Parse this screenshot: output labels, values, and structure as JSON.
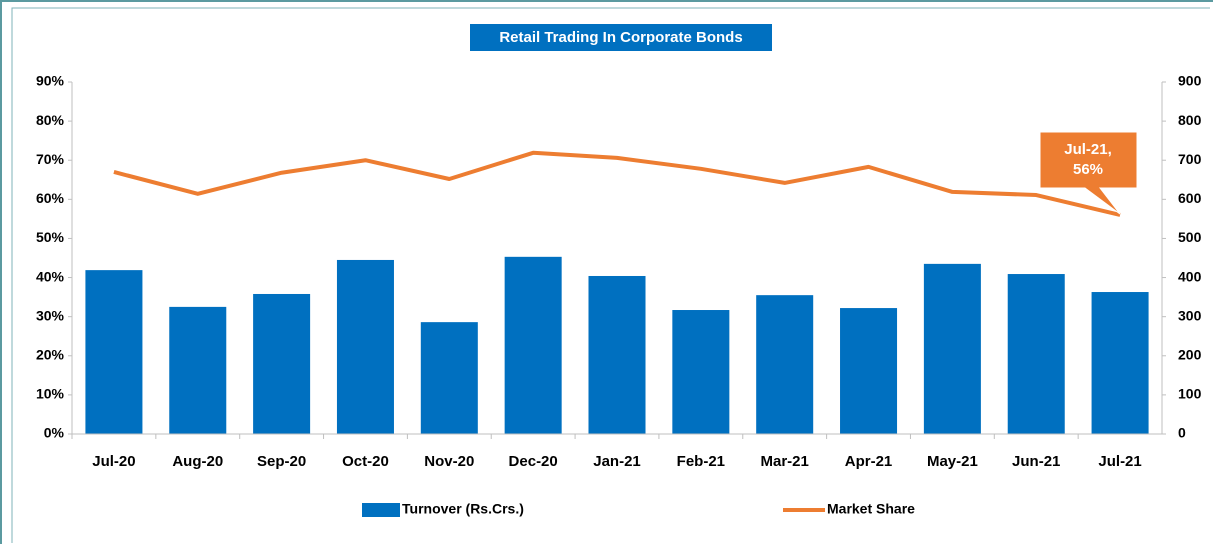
{
  "chart_data": {
    "type": "bar-line",
    "title": "Retail Trading In Corporate Bonds",
    "categories": [
      "Jul-20",
      "Aug-20",
      "Sep-20",
      "Oct-20",
      "Nov-20",
      "Dec-20",
      "Jan-21",
      "Feb-21",
      "Mar-21",
      "Apr-21",
      "May-21",
      "Jun-21",
      "Jul-21"
    ],
    "series": [
      {
        "name": "Turnover (Rs.Crs.)",
        "type": "bar",
        "axis": "y2",
        "color": "#0070c0",
        "values": [
          419,
          325,
          358,
          445,
          286,
          453,
          404,
          317,
          355,
          322,
          435,
          409,
          363
        ]
      },
      {
        "name": "Market Share",
        "type": "line",
        "axis": "y",
        "color": "#ed7d31",
        "values": [
          67,
          61.4,
          66.8,
          70,
          65.2,
          71.9,
          70.6,
          67.8,
          64.2,
          68.3,
          61.9,
          61.1,
          56
        ]
      }
    ],
    "ylim": [
      0,
      90
    ],
    "yticks": [
      {
        "value": 0,
        "label": "0%"
      },
      {
        "value": 10,
        "label": "10%"
      },
      {
        "value": 20,
        "label": "20%"
      },
      {
        "value": 30,
        "label": "30%"
      },
      {
        "value": 40,
        "label": "40%"
      },
      {
        "value": 50,
        "label": "50%"
      },
      {
        "value": 60,
        "label": "60%"
      },
      {
        "value": 70,
        "label": "70%"
      },
      {
        "value": 80,
        "label": "80%"
      },
      {
        "value": 90,
        "label": "90%"
      }
    ],
    "y2lim": [
      0,
      900
    ],
    "y2ticks": [
      0,
      100,
      200,
      300,
      400,
      500,
      600,
      700,
      800,
      900
    ],
    "annotation": [
      "Jul-21,",
      "56%"
    ],
    "legend": "bottom"
  }
}
